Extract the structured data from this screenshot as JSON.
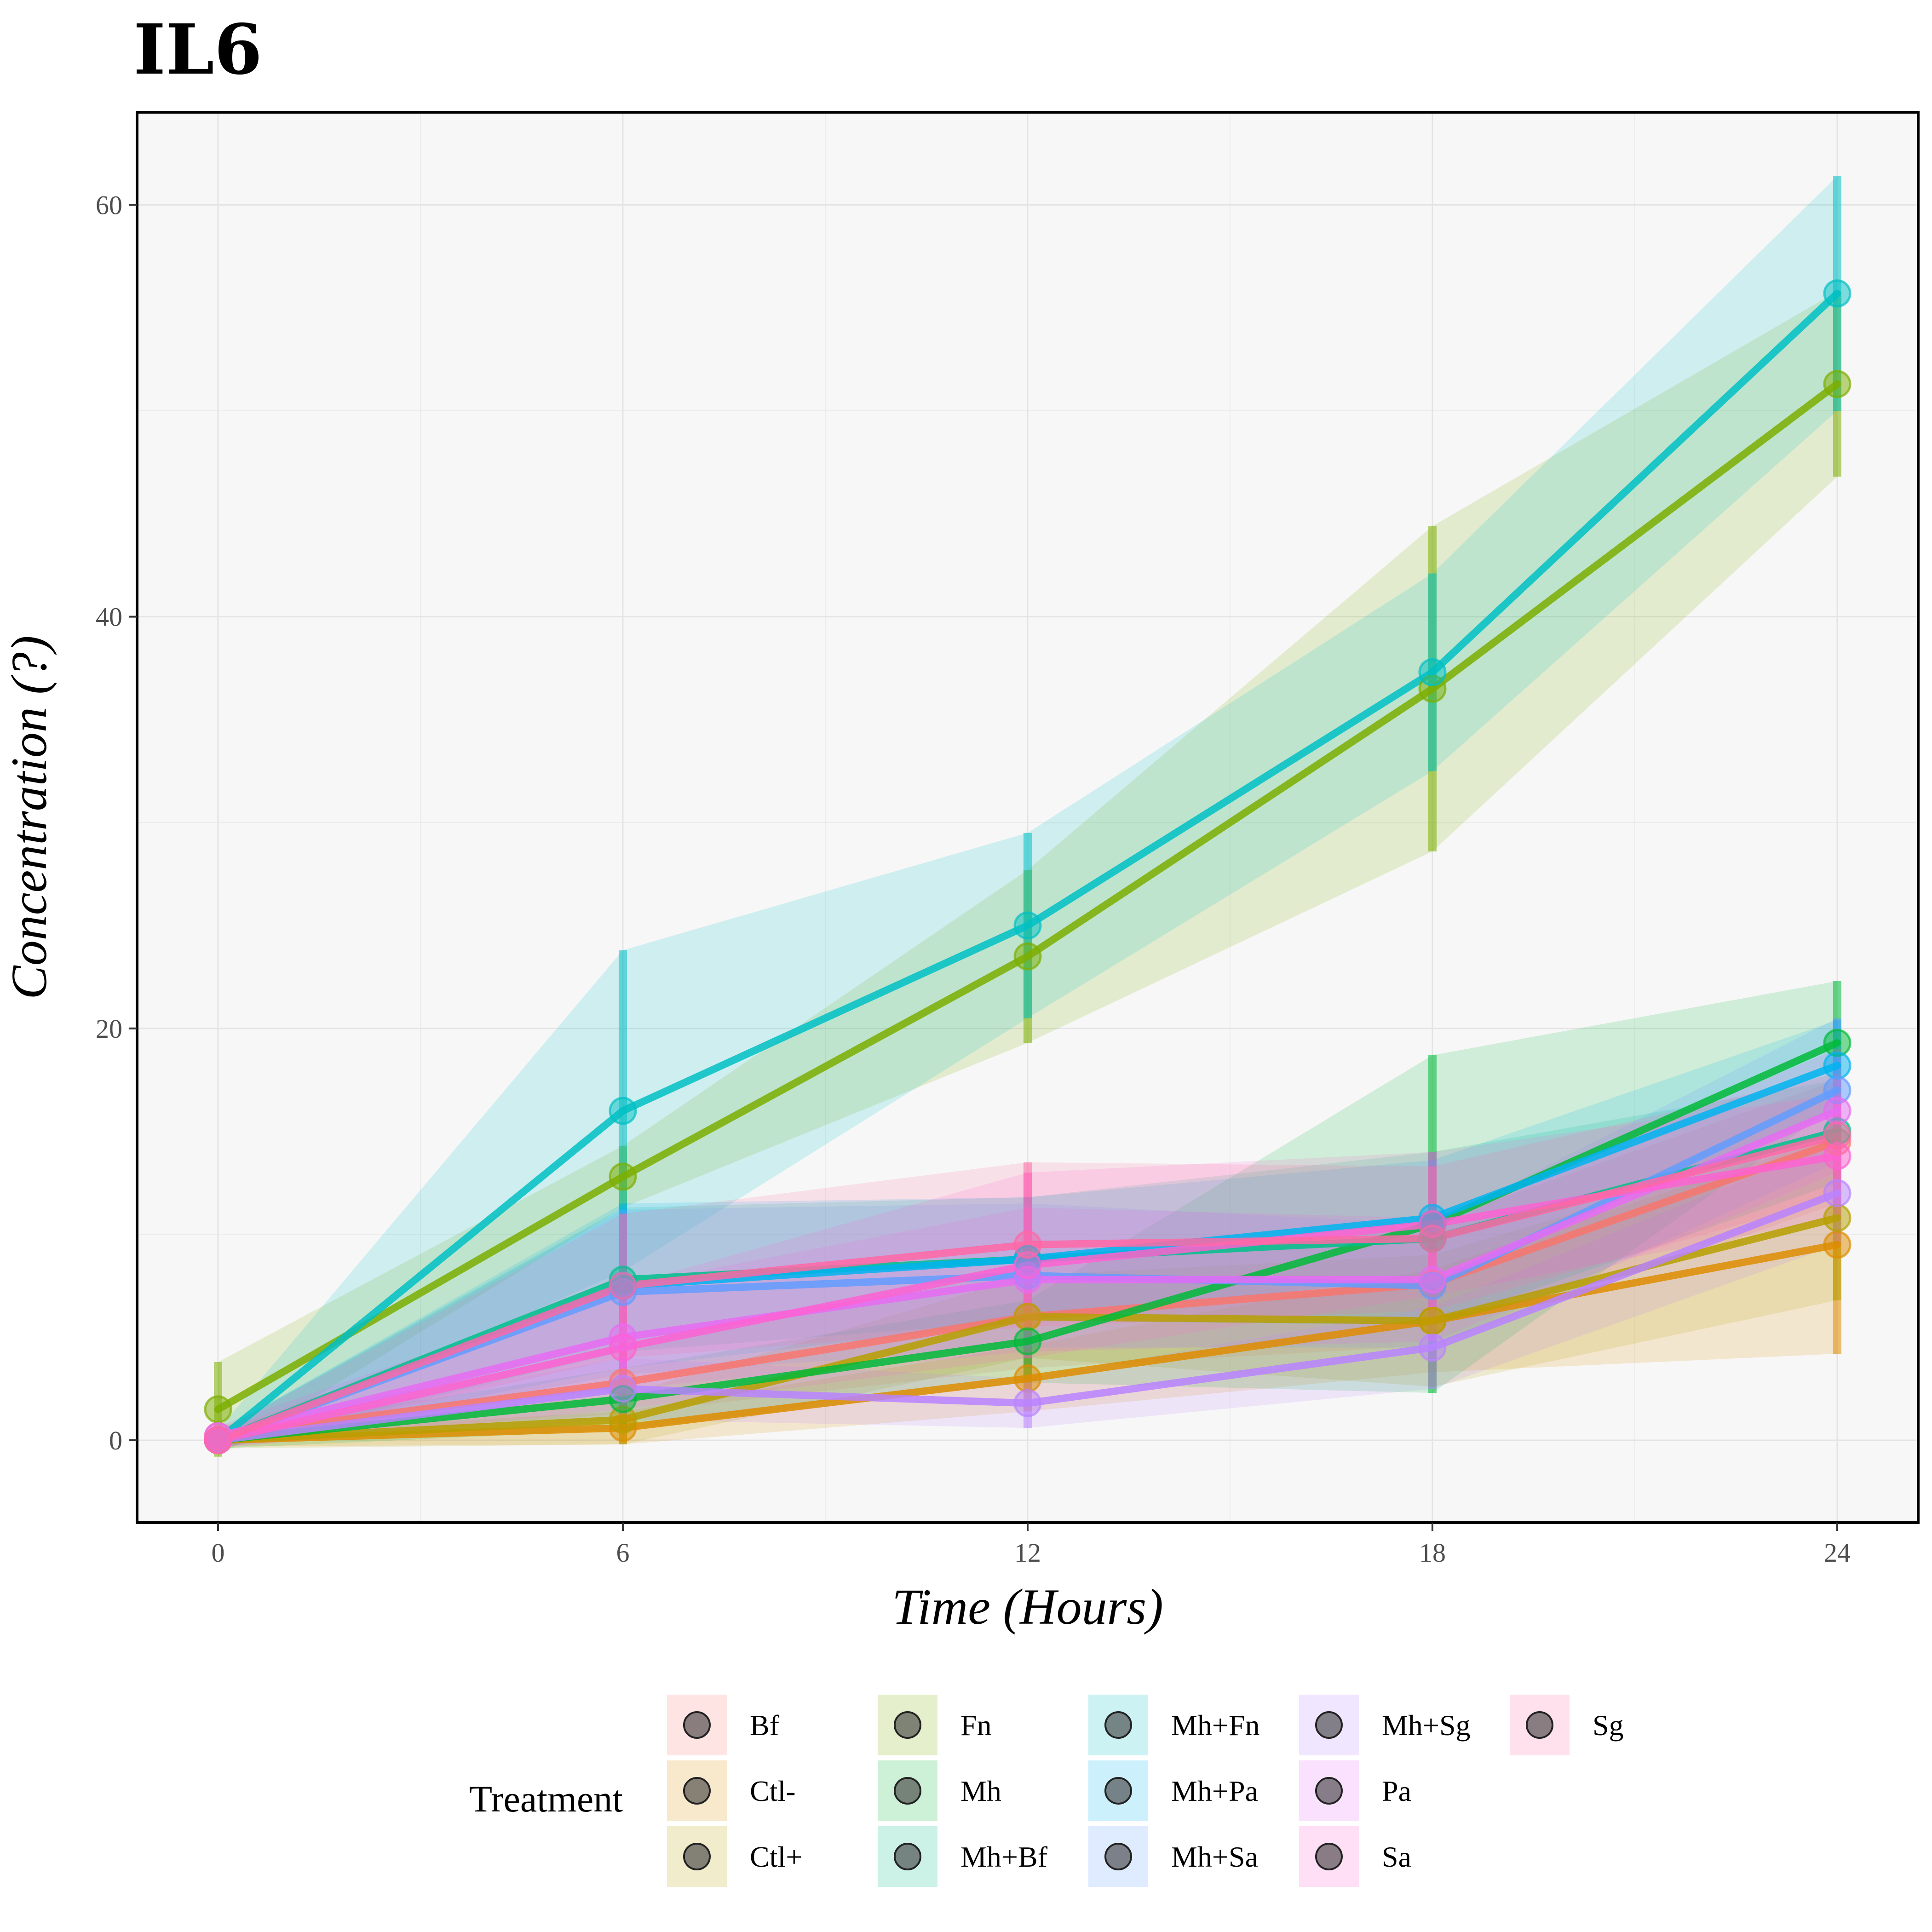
{
  "chart_data": {
    "type": "line",
    "title": "IL6",
    "xlabel": "Time (Hours)",
    "ylabel": "Concentration (?)",
    "x": [
      0,
      6,
      12,
      18,
      24
    ],
    "x_ticks": [
      "0",
      "6",
      "12",
      "18",
      "24"
    ],
    "y_ticks": [
      "0",
      "20",
      "40",
      "60"
    ],
    "xlim": [
      -1.2,
      25.2
    ],
    "ylim": [
      -4,
      64.5
    ],
    "grid": true,
    "legend": {
      "title": "Treatment",
      "placement": "bottom"
    },
    "series": [
      {
        "name": "Bf",
        "color": "#F8766D",
        "values": [
          0.2,
          2.8,
          6.0,
          7.6,
          14.5
        ],
        "err": [
          0.5,
          1.5,
          2.5,
          3.0,
          3.0
        ]
      },
      {
        "name": "Ctl-",
        "color": "#DE8C00",
        "values": [
          0.0,
          0.6,
          3.0,
          5.8,
          9.5
        ],
        "err": [
          0.3,
          0.8,
          1.6,
          2.5,
          5.3
        ]
      },
      {
        "name": "Ctl+",
        "color": "#B79F00",
        "values": [
          0.0,
          1.0,
          6.0,
          5.8,
          10.8
        ],
        "err": [
          0.4,
          1.2,
          2.0,
          3.2,
          4.0
        ]
      },
      {
        "name": "Fn",
        "color": "#7CAE00",
        "values": [
          1.5,
          12.8,
          23.5,
          36.5,
          51.3
        ],
        "err": [
          2.3,
          1.5,
          4.2,
          7.9,
          4.5
        ]
      },
      {
        "name": "Mh",
        "color": "#00BA38",
        "values": [
          0.0,
          2.0,
          4.8,
          10.5,
          19.3
        ],
        "err": [
          0.4,
          1.5,
          2.0,
          8.2,
          3.0
        ]
      },
      {
        "name": "Mh+Bf",
        "color": "#00C08B",
        "values": [
          0.0,
          7.8,
          8.8,
          9.8,
          15.0
        ],
        "err": [
          0.4,
          3.5,
          3.0,
          4.2,
          2.5
        ]
      },
      {
        "name": "Mh+Fn",
        "color": "#00BFC4",
        "values": [
          0.0,
          16.0,
          25.0,
          37.3,
          55.7
        ],
        "err": [
          0.5,
          7.8,
          4.5,
          4.8,
          5.7
        ]
      },
      {
        "name": "Mh+Pa",
        "color": "#00B4F0",
        "values": [
          0.0,
          7.5,
          8.8,
          10.8,
          18.2
        ],
        "err": [
          0.4,
          4.0,
          3.0,
          2.8,
          2.2
        ]
      },
      {
        "name": "Mh+Sa",
        "color": "#619CFF",
        "values": [
          0.0,
          7.2,
          8.0,
          7.5,
          17.0
        ],
        "err": [
          0.4,
          4.0,
          3.5,
          3.0,
          3.5
        ]
      },
      {
        "name": "Mh+Sg",
        "color": "#B983FF",
        "values": [
          0.0,
          2.5,
          1.8,
          4.5,
          12.0
        ],
        "err": [
          0.3,
          1.5,
          1.2,
          2.0,
          2.5
        ]
      },
      {
        "name": "Pa",
        "color": "#E76BF3",
        "values": [
          0.2,
          5.0,
          7.8,
          7.8,
          16.0
        ],
        "err": [
          0.5,
          2.5,
          3.5,
          3.0,
          3.0
        ]
      },
      {
        "name": "Sa",
        "color": "#FD61D1",
        "values": [
          0.0,
          4.5,
          8.5,
          10.5,
          13.8
        ],
        "err": [
          0.4,
          3.0,
          4.5,
          3.5,
          3.0
        ]
      },
      {
        "name": "Sg",
        "color": "#FF67A4",
        "values": [
          0.0,
          7.5,
          9.5,
          9.8,
          14.8
        ],
        "err": [
          0.4,
          3.5,
          4.0,
          3.5,
          3.0
        ]
      }
    ]
  }
}
